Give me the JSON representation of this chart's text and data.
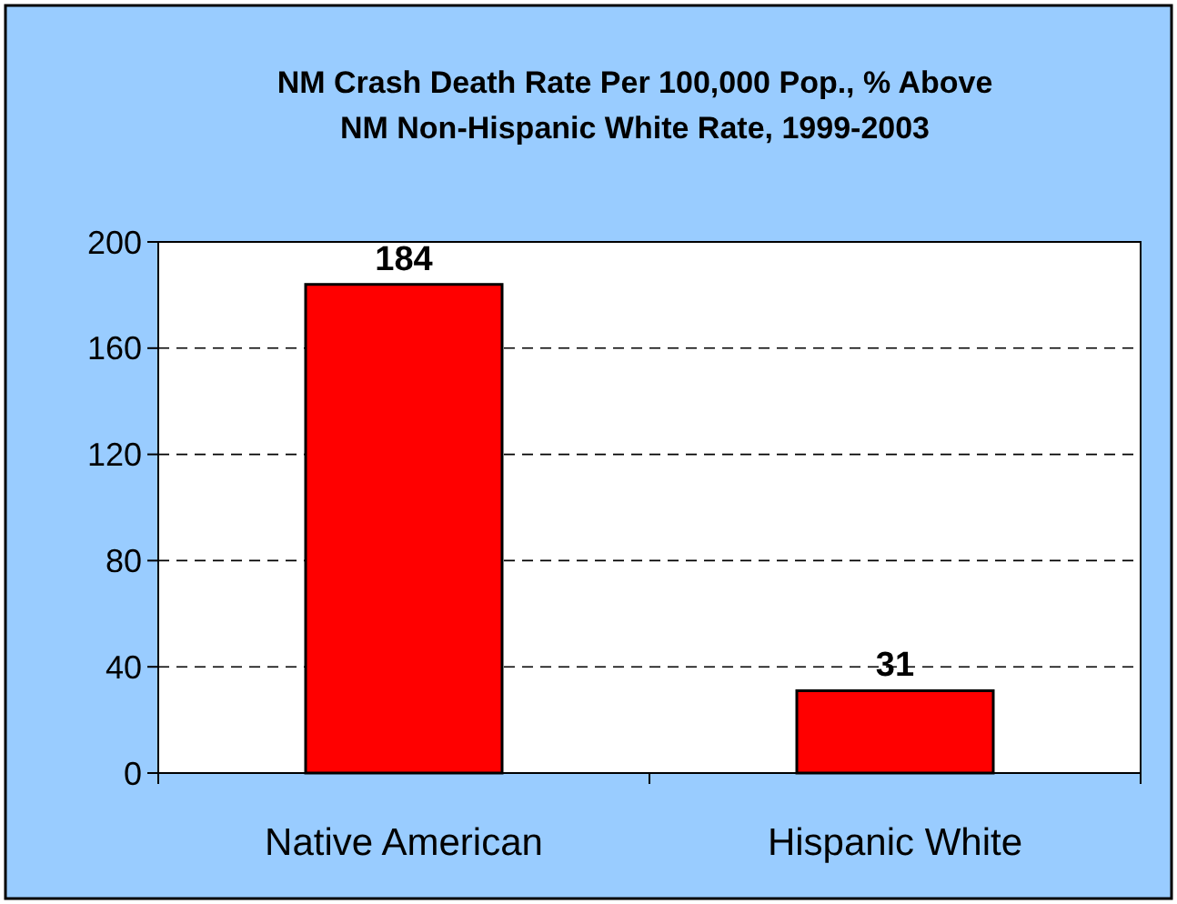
{
  "chart_data": {
    "type": "bar",
    "title": "NM Crash Death Rate Per 100,000 Pop., % Above\nNM Non-Hispanic White Rate, 1999-2003",
    "categories": [
      "Native American",
      "Hispanic White"
    ],
    "values": [
      184,
      31
    ],
    "color": "#ff0000",
    "ylim": [
      0,
      200
    ],
    "yticks": [
      0,
      40,
      80,
      120,
      160,
      200
    ],
    "grid": "y",
    "data_labels": true
  }
}
